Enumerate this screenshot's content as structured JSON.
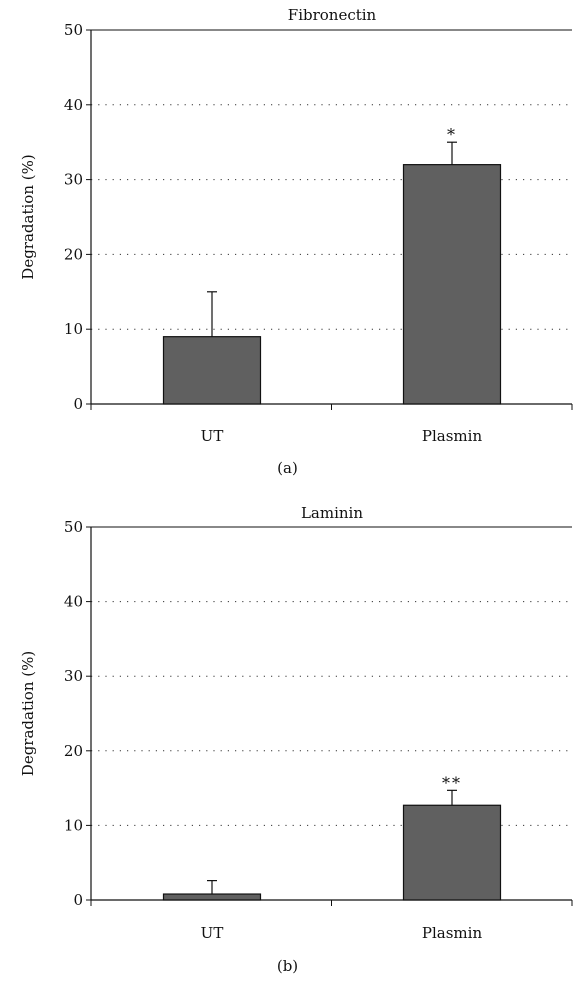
{
  "chart_data": [
    {
      "type": "bar",
      "title": "Fibronectin",
      "panel_label": "(a)",
      "categories": [
        "UT",
        "Plasmin"
      ],
      "values": [
        9,
        32
      ],
      "error_bars": [
        6,
        3
      ],
      "significance": [
        "",
        "*"
      ],
      "ylabel": "Degradation (%)",
      "xlabel": "",
      "ylim": [
        0,
        50
      ],
      "yticks": [
        0,
        10,
        20,
        30,
        40,
        50
      ],
      "grid": "dotted-horizontal",
      "bar_color": "#606060"
    },
    {
      "type": "bar",
      "title": "Laminin",
      "panel_label": "(b)",
      "categories": [
        "UT",
        "Plasmin"
      ],
      "values": [
        0.8,
        12.7
      ],
      "error_bars": [
        1.8,
        2
      ],
      "significance": [
        "",
        "**"
      ],
      "ylabel": "Degradation (%)",
      "xlabel": "",
      "ylim": [
        0,
        50
      ],
      "yticks": [
        0,
        10,
        20,
        30,
        40,
        50
      ],
      "grid": "dotted-horizontal",
      "bar_color": "#606060"
    }
  ]
}
